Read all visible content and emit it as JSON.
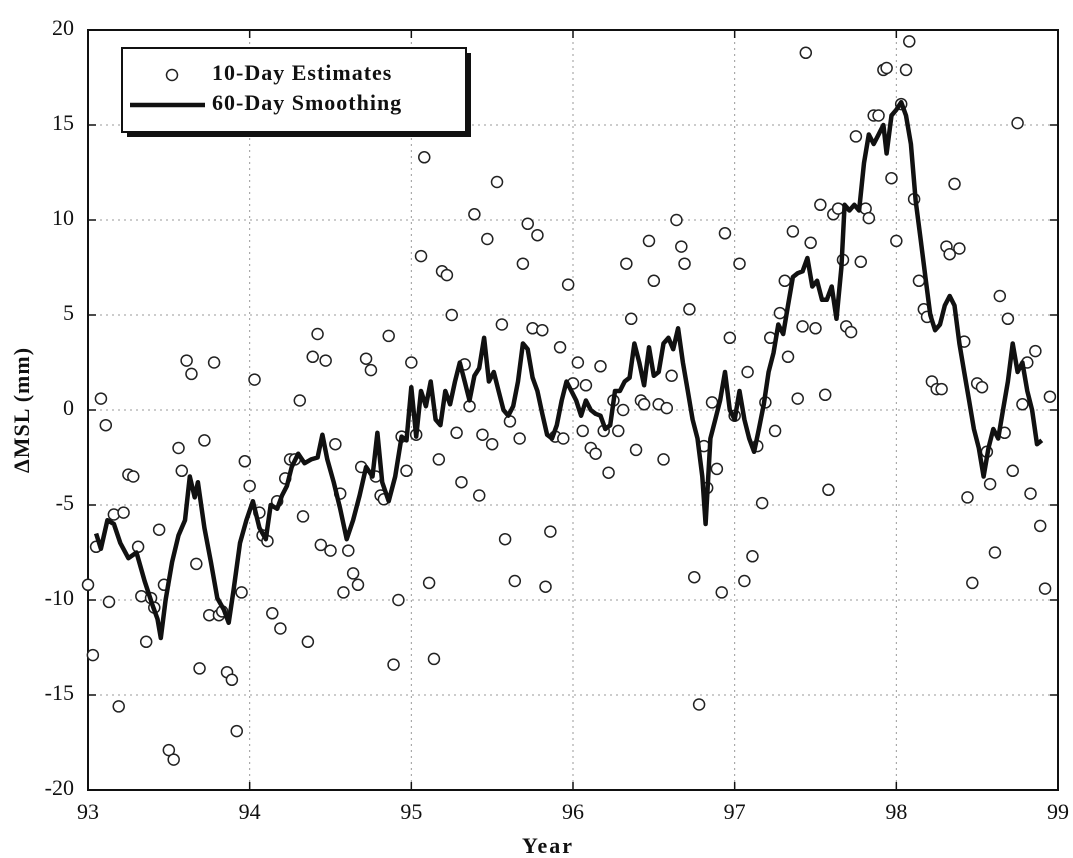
{
  "chart_data": {
    "type": "scatter",
    "xlabel": "Year",
    "ylabel": "ΔMSL (mm)",
    "xlim": [
      93,
      99
    ],
    "xticks": [
      93,
      94,
      95,
      96,
      97,
      98,
      99
    ],
    "ylim": [
      -20,
      20
    ],
    "yticks": [
      -20,
      -15,
      -10,
      -5,
      0,
      5,
      10,
      15,
      20
    ],
    "grid": true,
    "legend": "upper left",
    "series": [
      {
        "name": "10-Day Estimates",
        "type": "scatter",
        "color": "#222222",
        "x": [
          93.0,
          93.03,
          93.05,
          93.08,
          93.11,
          93.13,
          93.16,
          93.19,
          93.22,
          93.25,
          93.28,
          93.31,
          93.33,
          93.36,
          93.39,
          93.41,
          93.44,
          93.47,
          93.5,
          93.53,
          93.56,
          93.58,
          93.61,
          93.64,
          93.67,
          93.69,
          93.72,
          93.75,
          93.78,
          93.81,
          93.83,
          93.86,
          93.89,
          93.92,
          93.95,
          93.97,
          94.0,
          94.03,
          94.06,
          94.08,
          94.11,
          94.14,
          94.17,
          94.19,
          94.22,
          94.25,
          94.28,
          94.31,
          94.33,
          94.36,
          94.39,
          94.42,
          94.44,
          94.47,
          94.5,
          94.53,
          94.56,
          94.58,
          94.61,
          94.64,
          94.67,
          94.69,
          94.72,
          94.75,
          94.78,
          94.81,
          94.83,
          94.86,
          94.89,
          94.92,
          94.94,
          94.97,
          95.0,
          95.03,
          95.06,
          95.08,
          95.11,
          95.14,
          95.17,
          95.19,
          95.22,
          95.25,
          95.28,
          95.31,
          95.33,
          95.36,
          95.39,
          95.42,
          95.44,
          95.47,
          95.5,
          95.53,
          95.56,
          95.58,
          95.61,
          95.64,
          95.67,
          95.69,
          95.72,
          95.75,
          95.78,
          95.81,
          95.83,
          95.86,
          95.89,
          95.92,
          95.94,
          95.97,
          96.0,
          96.03,
          96.06,
          96.08,
          96.11,
          96.14,
          96.17,
          96.19,
          96.22,
          96.25,
          96.28,
          96.31,
          96.33,
          96.36,
          96.39,
          96.42,
          96.44,
          96.47,
          96.5,
          96.53,
          96.56,
          96.58,
          96.61,
          96.64,
          96.67,
          96.69,
          96.72,
          96.75,
          96.78,
          96.81,
          96.83,
          96.86,
          96.89,
          96.92,
          96.94,
          96.97,
          97.0,
          97.03,
          97.06,
          97.08,
          97.11,
          97.14,
          97.17,
          97.19,
          97.22,
          97.25,
          97.28,
          97.31,
          97.33,
          97.36,
          97.39,
          97.42,
          97.44,
          97.47,
          97.5,
          97.53,
          97.56,
          97.58,
          97.61,
          97.64,
          97.67,
          97.69,
          97.72,
          97.75,
          97.78,
          97.81,
          97.83,
          97.86,
          97.89,
          97.92,
          97.94,
          97.97,
          98.0,
          98.03,
          98.06,
          98.08,
          98.11,
          98.14,
          98.17,
          98.19,
          98.22,
          98.25,
          98.28,
          98.31,
          98.33,
          98.36,
          98.39,
          98.42,
          98.44,
          98.47,
          98.5,
          98.53,
          98.56,
          98.58,
          98.61,
          98.64,
          98.67,
          98.69,
          98.72,
          98.75,
          98.78,
          98.81,
          98.83,
          98.86,
          98.89,
          98.92,
          98.95
        ],
        "values": [
          -9.2,
          -12.9,
          -7.2,
          0.6,
          -0.8,
          -10.1,
          -5.5,
          -15.6,
          -5.4,
          -3.4,
          -3.5,
          -7.2,
          -9.8,
          -12.2,
          -9.9,
          -10.4,
          -6.3,
          -9.2,
          -17.9,
          -18.4,
          -2.0,
          -3.2,
          2.6,
          1.9,
          -8.1,
          -13.6,
          -1.6,
          -10.8,
          2.5,
          -10.8,
          -10.6,
          -13.8,
          -14.2,
          -16.9,
          -9.6,
          -2.7,
          -4.0,
          1.6,
          -5.4,
          -6.6,
          -6.9,
          -10.7,
          -4.8,
          -11.5,
          -3.6,
          -2.6,
          -2.6,
          0.5,
          -5.6,
          -12.2,
          2.8,
          4.0,
          -7.1,
          2.6,
          -7.4,
          -1.8,
          -4.4,
          -9.6,
          -7.4,
          -8.6,
          -9.2,
          -3.0,
          2.7,
          2.1,
          -3.5,
          -4.5,
          -4.7,
          3.9,
          -13.4,
          -10.0,
          -1.4,
          -3.2,
          2.5,
          -1.3,
          8.1,
          13.3,
          -9.1,
          -13.1,
          -2.6,
          7.3,
          7.1,
          5.0,
          -1.2,
          -3.8,
          2.4,
          0.2,
          10.3,
          -4.5,
          -1.3,
          9.0,
          -1.8,
          12.0,
          4.5,
          -6.8,
          -0.6,
          -9.0,
          -1.5,
          7.7,
          9.8,
          4.3,
          9.2,
          4.2,
          -9.3,
          -6.4,
          -1.4,
          3.3,
          -1.5,
          6.6,
          1.4,
          2.5,
          -1.1,
          1.3,
          -2.0,
          -2.3,
          2.3,
          -1.1,
          -3.3,
          0.5,
          -1.1,
          0.0,
          7.7,
          4.8,
          -2.1,
          0.5,
          0.3,
          8.9,
          6.8,
          0.3,
          -2.6,
          0.1,
          1.8,
          10.0,
          8.6,
          7.7,
          5.3,
          -8.8,
          -15.5,
          -1.9,
          -4.1,
          0.4,
          -3.1,
          -9.6,
          9.3,
          3.8,
          -0.3,
          7.7,
          -9.0,
          2.0,
          -7.7,
          -1.9,
          -4.9,
          0.4,
          3.8,
          -1.1,
          5.1,
          6.8,
          2.8,
          9.4,
          0.6,
          4.4,
          18.8,
          8.8,
          4.3,
          10.8,
          0.8,
          -4.2,
          10.3,
          10.6,
          7.9,
          4.4,
          4.1,
          14.4,
          7.8,
          10.6,
          10.1,
          15.5,
          15.5,
          17.9,
          18.0,
          12.2,
          8.9,
          16.1,
          17.9,
          19.4,
          11.1,
          6.8,
          5.3,
          4.9,
          1.5,
          1.1,
          1.1,
          8.6,
          8.2,
          11.9,
          8.5,
          3.6,
          -4.6,
          -9.1,
          1.4,
          1.2,
          -2.2,
          -3.9,
          -7.5,
          6.0,
          -1.2,
          4.8,
          -3.2,
          15.1,
          0.3,
          2.5,
          -4.4,
          3.1,
          -6.1,
          -9.4,
          0.7
        ]
      },
      {
        "name": "60-Day Smoothing",
        "type": "line",
        "color": "#111111",
        "x": [
          93.05,
          93.08,
          93.12,
          93.16,
          93.2,
          93.25,
          93.3,
          93.35,
          93.4,
          93.43,
          93.45,
          93.48,
          93.52,
          93.56,
          93.6,
          93.63,
          93.66,
          93.68,
          93.72,
          93.76,
          93.8,
          93.84,
          93.87,
          93.9,
          93.94,
          93.98,
          94.02,
          94.06,
          94.1,
          94.13,
          94.17,
          94.2,
          94.23,
          94.26,
          94.3,
          94.34,
          94.38,
          94.42,
          94.45,
          94.48,
          94.52,
          94.56,
          94.6,
          94.64,
          94.68,
          94.72,
          94.76,
          94.79,
          94.82,
          94.86,
          94.9,
          94.94,
          94.97,
          95.0,
          95.03,
          95.06,
          95.09,
          95.12,
          95.15,
          95.18,
          95.21,
          95.24,
          95.27,
          95.3,
          95.33,
          95.36,
          95.39,
          95.42,
          95.45,
          95.48,
          95.51,
          95.54,
          95.57,
          95.6,
          95.63,
          95.66,
          95.69,
          95.72,
          95.75,
          95.78,
          95.81,
          95.84,
          95.87,
          95.9,
          95.93,
          95.96,
          95.99,
          96.02,
          96.05,
          96.08,
          96.11,
          96.14,
          96.17,
          96.2,
          96.23,
          96.26,
          96.29,
          96.32,
          96.35,
          96.38,
          96.41,
          96.44,
          96.47,
          96.5,
          96.53,
          96.56,
          96.59,
          96.62,
          96.65,
          96.68,
          96.71,
          96.74,
          96.77,
          96.8,
          96.82,
          96.85,
          96.88,
          96.91,
          96.94,
          96.97,
          97.0,
          97.03,
          97.06,
          97.09,
          97.12,
          97.15,
          97.18,
          97.21,
          97.24,
          97.27,
          97.3,
          97.33,
          97.36,
          97.39,
          97.42,
          97.45,
          97.48,
          97.51,
          97.54,
          97.57,
          97.6,
          97.63,
          97.66,
          97.68,
          97.71,
          97.74,
          97.77,
          97.8,
          97.83,
          97.86,
          97.89,
          97.92,
          97.94,
          97.97,
          98.0,
          98.03,
          98.06,
          98.09,
          98.12,
          98.15,
          98.18,
          98.21,
          98.24,
          98.27,
          98.3,
          98.33,
          98.36,
          98.39,
          98.42,
          98.45,
          98.48,
          98.51,
          98.54,
          98.57,
          98.6,
          98.63,
          98.66,
          98.69,
          98.72,
          98.75,
          98.78,
          98.81,
          98.84,
          98.87,
          98.9
        ],
        "values": [
          -6.5,
          -7.3,
          -5.8,
          -6.0,
          -7.0,
          -7.8,
          -7.5,
          -9.0,
          -10.3,
          -11.0,
          -12.0,
          -10.0,
          -8.0,
          -6.6,
          -5.8,
          -3.5,
          -4.6,
          -3.8,
          -6.2,
          -8.0,
          -9.9,
          -10.5,
          -11.2,
          -9.5,
          -7.0,
          -5.8,
          -4.8,
          -6.2,
          -6.8,
          -5.0,
          -5.2,
          -4.5,
          -4.0,
          -3.0,
          -2.3,
          -2.8,
          -2.6,
          -2.5,
          -1.3,
          -2.6,
          -3.8,
          -5.2,
          -6.8,
          -5.8,
          -4.5,
          -3.0,
          -3.5,
          -1.2,
          -3.8,
          -4.8,
          -3.5,
          -1.4,
          -1.6,
          1.2,
          -1.4,
          1.0,
          0.2,
          1.5,
          -0.5,
          -0.8,
          1.0,
          0.3,
          1.5,
          2.5,
          1.5,
          0.5,
          1.8,
          2.2,
          3.8,
          1.5,
          2.0,
          1.0,
          0.0,
          -0.3,
          0.2,
          1.5,
          3.5,
          3.2,
          1.7,
          1.0,
          -0.2,
          -1.3,
          -1.5,
          -0.8,
          0.5,
          1.5,
          1.0,
          0.5,
          -0.3,
          0.5,
          0.0,
          -0.2,
          -0.3,
          -1.0,
          -0.8,
          1.0,
          1.0,
          1.5,
          1.7,
          3.5,
          2.5,
          1.3,
          3.3,
          1.8,
          2.0,
          3.5,
          3.8,
          3.2,
          4.3,
          2.5,
          1.0,
          -0.5,
          -1.5,
          -3.5,
          -6.0,
          -1.5,
          -0.5,
          0.5,
          2.0,
          0.0,
          -0.5,
          1.0,
          -0.5,
          -1.5,
          -2.2,
          -1.0,
          0.3,
          2.0,
          3.0,
          4.5,
          4.0,
          5.5,
          7.0,
          7.2,
          7.3,
          8.0,
          6.5,
          6.8,
          5.8,
          5.8,
          6.5,
          4.8,
          7.5,
          10.8,
          10.5,
          10.8,
          10.5,
          13.0,
          14.5,
          14.0,
          14.5,
          15.0,
          13.5,
          15.5,
          15.8,
          16.2,
          15.5,
          14.0,
          11.0,
          9.0,
          7.0,
          5.0,
          4.2,
          4.5,
          5.5,
          6.0,
          5.5,
          3.5,
          2.0,
          0.5,
          -1.0,
          -2.0,
          -3.5,
          -2.0,
          -1.0,
          -1.5,
          0.0,
          1.5,
          3.5,
          2.0,
          2.5,
          1.0,
          0.0,
          -1.8,
          -1.6
        ]
      }
    ]
  }
}
